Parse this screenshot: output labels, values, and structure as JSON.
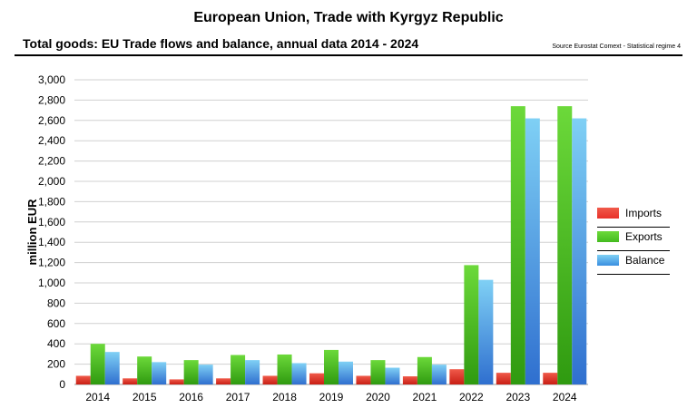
{
  "header": {
    "title": "European Union, Trade with Kyrgyz Republic",
    "subtitle": "Total goods: EU Trade flows and balance, annual data 2014 - 2024",
    "source": "Source Eurostat Comext  - Statistical regime 4"
  },
  "colors": {
    "imports": "#e8322a",
    "exports": "#44bb1f",
    "balance": "#3a8fe0",
    "grid": "#d0d0d0"
  },
  "chart_data": {
    "type": "bar",
    "ylabel": "million EUR",
    "ylim": [
      0,
      3000
    ],
    "y_ticks": [
      "0",
      "200",
      "400",
      "600",
      "800",
      "1,000",
      "1,200",
      "1,400",
      "1,600",
      "1,800",
      "2,000",
      "2,200",
      "2,400",
      "2,600",
      "2,800",
      "3,000"
    ],
    "categories": [
      "2014",
      "2015",
      "2016",
      "2017",
      "2018",
      "2019",
      "2020",
      "2021",
      "2022",
      "2023",
      "2024"
    ],
    "series": [
      {
        "name": "Imports",
        "values": [
          85,
          60,
          50,
          60,
          85,
          110,
          85,
          80,
          150,
          115,
          115
        ]
      },
      {
        "name": "Exports",
        "values": [
          400,
          275,
          240,
          290,
          295,
          340,
          240,
          270,
          1175,
          2740,
          2740
        ]
      },
      {
        "name": "Balance",
        "values": [
          320,
          220,
          195,
          240,
          210,
          225,
          165,
          195,
          1030,
          2620,
          2620
        ]
      }
    ],
    "grid": true,
    "legend_position": "right"
  }
}
